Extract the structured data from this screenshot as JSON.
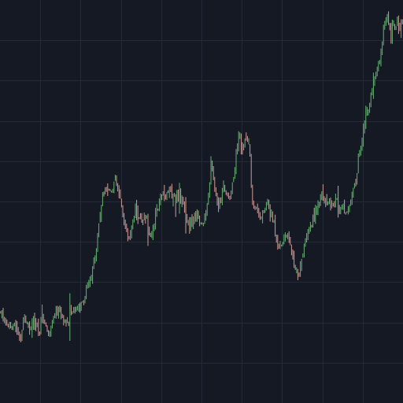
{
  "chart_data": {
    "type": "candlestick",
    "title": "",
    "xlabel": "",
    "ylabel": "",
    "grid": true,
    "legend": "none",
    "axes_visible": false,
    "ylim": [
      0,
      100
    ],
    "colors": {
      "background": "#151924",
      "grid": "#252a38",
      "up": "#6cc57a",
      "down": "#e3aaa6"
    },
    "series": [
      {
        "anchor_closes": [
          [
            0,
            20
          ],
          [
            6,
            18
          ],
          [
            12,
            16
          ],
          [
            18,
            17
          ],
          [
            22,
            14
          ],
          [
            26,
            12
          ],
          [
            30,
            20
          ],
          [
            34,
            17
          ],
          [
            38,
            15
          ],
          [
            42,
            18
          ],
          [
            46,
            16
          ],
          [
            50,
            14
          ],
          [
            54,
            19
          ],
          [
            58,
            16
          ],
          [
            62,
            14
          ],
          [
            66,
            17
          ],
          [
            70,
            19
          ],
          [
            74,
            21
          ],
          [
            78,
            19
          ],
          [
            82,
            18
          ],
          [
            86,
            17
          ],
          [
            90,
            19
          ],
          [
            94,
            21
          ],
          [
            98,
            22
          ],
          [
            102,
            21
          ],
          [
            106,
            23
          ],
          [
            110,
            26
          ],
          [
            114,
            28
          ],
          [
            118,
            31
          ],
          [
            122,
            37
          ],
          [
            126,
            44
          ],
          [
            130,
            50
          ],
          [
            134,
            54
          ],
          [
            138,
            52
          ],
          [
            142,
            53
          ],
          [
            146,
            55
          ],
          [
            150,
            52
          ],
          [
            154,
            48
          ],
          [
            158,
            44
          ],
          [
            160,
            41
          ],
          [
            164,
            40
          ],
          [
            168,
            43
          ],
          [
            172,
            47
          ],
          [
            176,
            45
          ],
          [
            180,
            44
          ],
          [
            184,
            46
          ],
          [
            188,
            43
          ],
          [
            192,
            40
          ],
          [
            196,
            44
          ],
          [
            200,
            47
          ],
          [
            204,
            51
          ],
          [
            208,
            52
          ],
          [
            212,
            51
          ],
          [
            216,
            52
          ],
          [
            220,
            51
          ],
          [
            224,
            50
          ],
          [
            228,
            52
          ],
          [
            232,
            48
          ],
          [
            236,
            46
          ],
          [
            240,
            43
          ],
          [
            244,
            44
          ],
          [
            248,
            46
          ],
          [
            252,
            45
          ],
          [
            256,
            44
          ],
          [
            260,
            45
          ],
          [
            264,
            48
          ],
          [
            268,
            60
          ],
          [
            272,
            54
          ],
          [
            276,
            48
          ],
          [
            280,
            50
          ],
          [
            284,
            53
          ],
          [
            288,
            52
          ],
          [
            292,
            50
          ],
          [
            296,
            55
          ],
          [
            300,
            62
          ],
          [
            304,
            67
          ],
          [
            308,
            64
          ],
          [
            312,
            66
          ],
          [
            316,
            65
          ],
          [
            318,
            60
          ],
          [
            320,
            50
          ],
          [
            324,
            48
          ],
          [
            328,
            47
          ],
          [
            332,
            45
          ],
          [
            336,
            47
          ],
          [
            340,
            49
          ],
          [
            344,
            46
          ],
          [
            348,
            44
          ],
          [
            352,
            39
          ],
          [
            356,
            37
          ],
          [
            360,
            40
          ],
          [
            364,
            41
          ],
          [
            368,
            38
          ],
          [
            372,
            34
          ],
          [
            376,
            30
          ],
          [
            380,
            31
          ],
          [
            384,
            34
          ],
          [
            388,
            40
          ],
          [
            392,
            42
          ],
          [
            396,
            44
          ],
          [
            400,
            46
          ],
          [
            404,
            49
          ],
          [
            408,
            51
          ],
          [
            412,
            50
          ],
          [
            416,
            48
          ],
          [
            420,
            49
          ],
          [
            424,
            48
          ],
          [
            428,
            50
          ],
          [
            432,
            47
          ],
          [
            436,
            48
          ],
          [
            440,
            47
          ],
          [
            444,
            48
          ],
          [
            448,
            51
          ],
          [
            452,
            55
          ],
          [
            456,
            62
          ],
          [
            460,
            67
          ],
          [
            464,
            71
          ],
          [
            468,
            74
          ],
          [
            472,
            78
          ],
          [
            476,
            82
          ],
          [
            480,
            84
          ],
          [
            484,
            90
          ],
          [
            488,
            96
          ],
          [
            492,
            98
          ],
          [
            496,
            94
          ],
          [
            500,
            96
          ],
          [
            504,
            97
          ],
          [
            508,
            96
          ],
          [
            512,
            98
          ]
        ]
      }
    ]
  }
}
